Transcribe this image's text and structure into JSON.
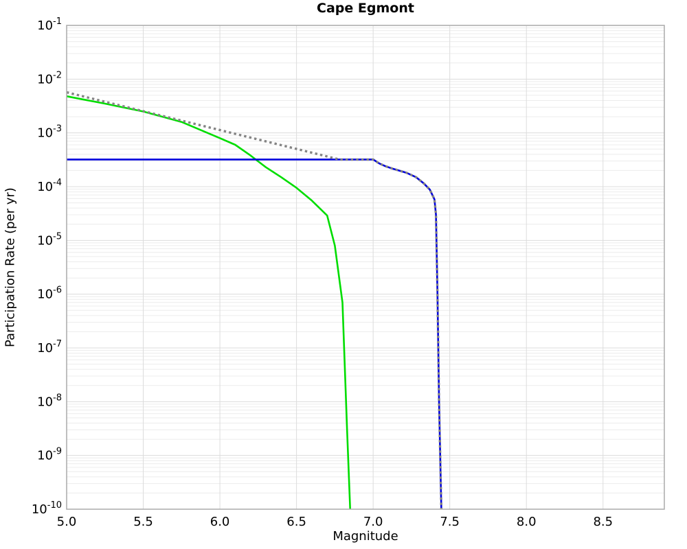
{
  "chart_data": {
    "type": "line",
    "title": "Cape Egmont",
    "xlabel": "Magnitude",
    "ylabel": "Participation Rate (per yr)",
    "xlim": [
      5.0,
      8.9
    ],
    "ylim": [
      1e-10,
      0.1
    ],
    "ylim_exponents": [
      -10,
      -1
    ],
    "xticks": [
      5.0,
      5.5,
      6.0,
      6.5,
      7.0,
      7.5,
      8.0,
      8.5
    ],
    "ytick_exponents": [
      -1,
      -2,
      -3,
      -4,
      -5,
      -6,
      -7,
      -8,
      -9,
      -10
    ],
    "yscale": "log",
    "grid": true,
    "legend_position": "none",
    "colors": {
      "green_series": "#00dd00",
      "blue_series": "#0000dd",
      "gray_series": "#848484",
      "major_grid": "#dcdcdc",
      "minor_grid": "#ececec",
      "border": "#aaaaaa"
    },
    "series": [
      {
        "name": "green-solid-curve",
        "color": "#00dd00",
        "style": "solid",
        "width": 2.6,
        "points": [
          [
            5.0,
            0.0048
          ],
          [
            5.25,
            0.0035
          ],
          [
            5.5,
            0.0025
          ],
          [
            5.75,
            0.0016
          ],
          [
            6.0,
            0.0008
          ],
          [
            6.1,
            0.0006
          ],
          [
            6.2,
            0.00038
          ],
          [
            6.3,
            0.00023
          ],
          [
            6.4,
            0.00015
          ],
          [
            6.5,
            9.5e-05
          ],
          [
            6.6,
            5.5e-05
          ],
          [
            6.7,
            2.9e-05
          ],
          [
            6.75,
            8e-06
          ],
          [
            6.8,
            7e-07
          ],
          [
            6.83,
            3e-09
          ],
          [
            6.85,
            1e-10
          ]
        ]
      },
      {
        "name": "blue-solid-curve",
        "color": "#0000dd",
        "style": "solid",
        "width": 2.6,
        "points": [
          [
            5.0,
            0.00032
          ],
          [
            7.0,
            0.00032
          ],
          [
            7.04,
            0.00027
          ],
          [
            7.08,
            0.00024
          ],
          [
            7.13,
            0.000215
          ],
          [
            7.18,
            0.000195
          ],
          [
            7.22,
            0.00018
          ],
          [
            7.28,
            0.00015
          ],
          [
            7.33,
            0.000115
          ],
          [
            7.37,
            8.8e-05
          ],
          [
            7.4,
            5.8e-05
          ],
          [
            7.41,
            3e-05
          ],
          [
            7.42,
            1e-06
          ],
          [
            7.43,
            1e-08
          ],
          [
            7.445,
            1e-10
          ]
        ]
      },
      {
        "name": "gray-dotted-curve",
        "color": "#848484",
        "style": "dotted",
        "width": 3.4,
        "points": [
          [
            5.0,
            0.0057
          ],
          [
            6.78,
            0.00032
          ],
          [
            7.0,
            0.00032
          ],
          [
            7.04,
            0.00027
          ],
          [
            7.08,
            0.00024
          ],
          [
            7.13,
            0.000215
          ],
          [
            7.18,
            0.000195
          ],
          [
            7.22,
            0.00018
          ],
          [
            7.28,
            0.00015
          ],
          [
            7.33,
            0.000115
          ],
          [
            7.37,
            8.8e-05
          ],
          [
            7.4,
            5.8e-05
          ],
          [
            7.41,
            3e-05
          ],
          [
            7.42,
            1e-06
          ],
          [
            7.43,
            1e-08
          ],
          [
            7.445,
            1e-10
          ]
        ]
      }
    ]
  }
}
